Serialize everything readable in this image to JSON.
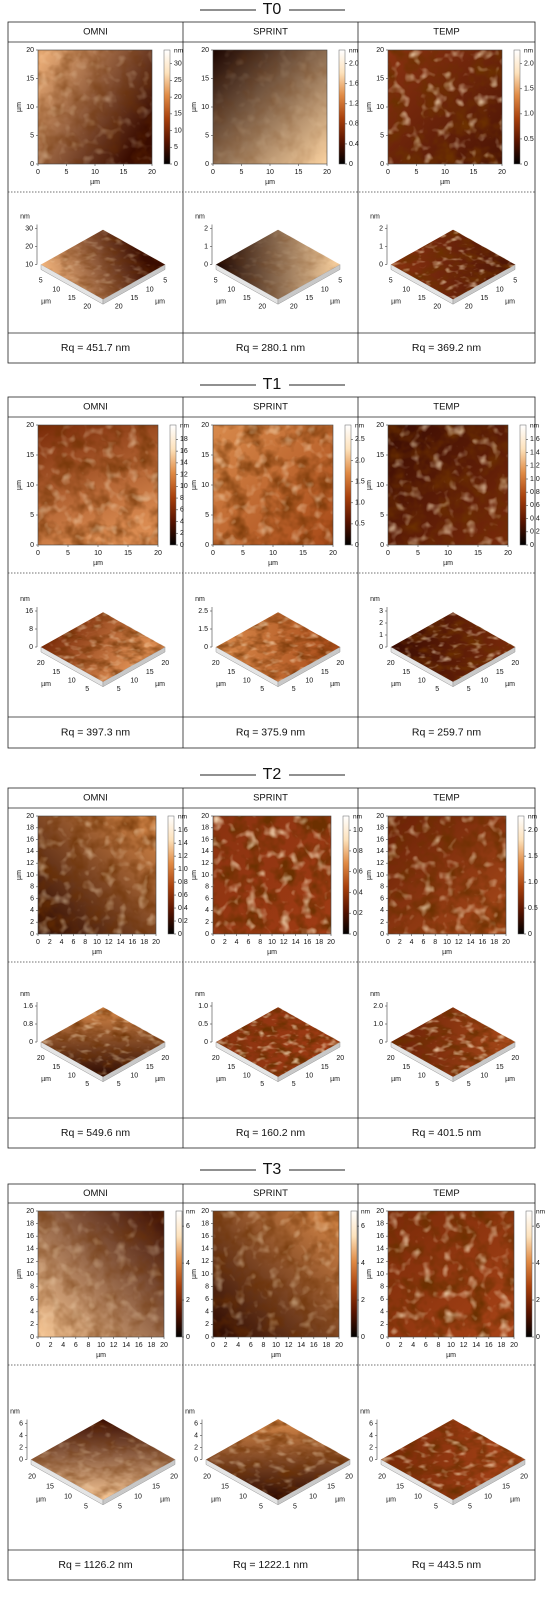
{
  "sections": [
    {
      "title": "T0",
      "columns": [
        {
          "header": "OMNI",
          "map": {
            "x_label": "µm",
            "y_label": "µm",
            "x_ticks": [
              "0",
              "5",
              "10",
              "15",
              "20"
            ],
            "y_ticks": [
              "0",
              "5",
              "10",
              "15",
              "20"
            ],
            "scale_unit": "nm",
            "scale_ticks": [
              "0",
              "5",
              "10",
              "15",
              "20",
              "25",
              "30"
            ]
          },
          "view": {
            "z_unit": "nm",
            "z_ticks": [
              "10",
              "20",
              "30"
            ],
            "left_label": "µm",
            "right_label": "µm",
            "left_ticks": [
              "5",
              "10",
              "15",
              "20"
            ],
            "right_ticks": [
              "20",
              "15",
              "10",
              "5"
            ]
          },
          "rq": "Rq = 451.7 nm"
        },
        {
          "header": "SPRINT",
          "map": {
            "x_label": "µm",
            "y_label": "µm",
            "x_ticks": [
              "0",
              "5",
              "10",
              "15",
              "20"
            ],
            "y_ticks": [
              "0",
              "5",
              "10",
              "15",
              "20"
            ],
            "scale_unit": "nm",
            "scale_ticks": [
              "0",
              "0.4",
              "0.8",
              "1.2",
              "1.6",
              "2.0"
            ]
          },
          "view": {
            "z_unit": "nm",
            "z_ticks": [
              "0",
              "1",
              "2"
            ],
            "left_label": "µm",
            "right_label": "µm",
            "left_ticks": [
              "5",
              "10",
              "15",
              "20"
            ],
            "right_ticks": [
              "20",
              "15",
              "10",
              "5"
            ]
          },
          "rq": "Rq = 280.1 nm"
        },
        {
          "header": "TEMP",
          "map": {
            "x_label": "µm",
            "y_label": "µm",
            "x_ticks": [
              "0",
              "5",
              "10",
              "15",
              "20"
            ],
            "y_ticks": [
              "0",
              "5",
              "10",
              "15",
              "20"
            ],
            "scale_unit": "nm",
            "scale_ticks": [
              "0",
              "0.5",
              "1.0",
              "1.5",
              "2.0"
            ]
          },
          "view": {
            "z_unit": "nm",
            "z_ticks": [
              "0",
              "1",
              "2"
            ],
            "left_label": "µm",
            "right_label": "µm",
            "left_ticks": [
              "5",
              "10",
              "15",
              "20"
            ],
            "right_ticks": [
              "20",
              "15",
              "10",
              "5"
            ]
          },
          "rq": "Rq = 369.2 nm"
        }
      ]
    },
    {
      "title": "T1",
      "columns": [
        {
          "header": "OMNI",
          "map": {
            "x_label": "µm",
            "y_label": "µm",
            "x_ticks": [
              "0",
              "5",
              "10",
              "15",
              "20"
            ],
            "y_ticks": [
              "0",
              "5",
              "10",
              "15",
              "20"
            ],
            "scale_unit": "nm",
            "scale_ticks": [
              "0",
              "2",
              "4",
              "6",
              "8",
              "10",
              "12",
              "14",
              "16",
              "18"
            ]
          },
          "view": {
            "z_unit": "nm",
            "z_ticks": [
              "0",
              "8",
              "16"
            ],
            "left_label": "µm",
            "right_label": "µm",
            "left_ticks": [
              "20",
              "15",
              "10",
              "5"
            ],
            "right_ticks": [
              "5",
              "10",
              "15",
              "20"
            ]
          },
          "rq": "Rq = 397.3 nm"
        },
        {
          "header": "SPRINT",
          "map": {
            "x_label": "µm",
            "y_label": "µm",
            "x_ticks": [
              "0",
              "5",
              "10",
              "15",
              "20"
            ],
            "y_ticks": [
              "0",
              "5",
              "10",
              "15",
              "20"
            ],
            "scale_unit": "nm",
            "scale_ticks": [
              "0",
              "0.5",
              "1.0",
              "1.5",
              "2.0",
              "2.5"
            ]
          },
          "view": {
            "z_unit": "nm",
            "z_ticks": [
              "0",
              "1.5",
              "2.5"
            ],
            "left_label": "µm",
            "right_label": "µm",
            "left_ticks": [
              "20",
              "15",
              "10",
              "5"
            ],
            "right_ticks": [
              "5",
              "10",
              "15",
              "20"
            ]
          },
          "rq": "Rq = 375.9 nm"
        },
        {
          "header": "TEMP",
          "map": {
            "x_label": "µm",
            "y_label": "µm",
            "x_ticks": [
              "0",
              "5",
              "10",
              "15",
              "20"
            ],
            "y_ticks": [
              "0",
              "5",
              "10",
              "15",
              "20"
            ],
            "scale_unit": "nm",
            "scale_ticks": [
              "0",
              "0.2",
              "0.4",
              "0.6",
              "0.8",
              "1.0",
              "1.2",
              "1.4",
              "1.6"
            ]
          },
          "view": {
            "z_unit": "nm",
            "z_ticks": [
              "0",
              "1",
              "2",
              "3"
            ],
            "left_label": "µm",
            "right_label": "µm",
            "left_ticks": [
              "20",
              "15",
              "10",
              "5"
            ],
            "right_ticks": [
              "5",
              "10",
              "15",
              "20"
            ]
          },
          "rq": "Rq = 259.7 nm"
        }
      ]
    },
    {
      "title": "T2",
      "columns": [
        {
          "header": "OMNI",
          "map": {
            "x_label": "µm",
            "y_label": "µm",
            "x_ticks": [
              "0",
              "2",
              "4",
              "6",
              "8",
              "10",
              "12",
              "14",
              "16",
              "18",
              "20"
            ],
            "y_ticks": [
              "0",
              "2",
              "4",
              "6",
              "8",
              "10",
              "12",
              "14",
              "16",
              "18",
              "20"
            ],
            "scale_unit": "nm",
            "scale_ticks": [
              "0",
              "0.2",
              "0.4",
              "0.6",
              "0.8",
              "1.0",
              "1.2",
              "1.4",
              "1.6"
            ]
          },
          "view": {
            "z_unit": "nm",
            "z_ticks": [
              "0",
              "0.8",
              "1.6"
            ],
            "left_label": "µm",
            "right_label": "µm",
            "left_ticks": [
              "20",
              "15",
              "10",
              "5"
            ],
            "right_ticks": [
              "5",
              "10",
              "15",
              "20"
            ]
          },
          "rq": "Rq = 549.6 nm"
        },
        {
          "header": "SPRINT",
          "map": {
            "x_label": "µm",
            "y_label": "µm",
            "x_ticks": [
              "0",
              "2",
              "4",
              "6",
              "8",
              "10",
              "12",
              "14",
              "16",
              "18",
              "20"
            ],
            "y_ticks": [
              "0",
              "2",
              "4",
              "6",
              "8",
              "10",
              "12",
              "14",
              "16",
              "18",
              "20"
            ],
            "scale_unit": "nm",
            "scale_ticks": [
              "0",
              "0.2",
              "0.4",
              "0.6",
              "0.8",
              "1.0"
            ]
          },
          "view": {
            "z_unit": "nm",
            "z_ticks": [
              "0",
              "0.5",
              "1.0"
            ],
            "left_label": "µm",
            "right_label": "µm",
            "left_ticks": [
              "20",
              "15",
              "10",
              "5"
            ],
            "right_ticks": [
              "5",
              "10",
              "15",
              "20"
            ]
          },
          "rq": "Rq = 160.2 nm"
        },
        {
          "header": "TEMP",
          "map": {
            "x_label": "µm",
            "y_label": "µm",
            "x_ticks": [
              "0",
              "2",
              "4",
              "6",
              "8",
              "10",
              "12",
              "14",
              "16",
              "18",
              "20"
            ],
            "y_ticks": [
              "0",
              "2",
              "4",
              "6",
              "8",
              "10",
              "12",
              "14",
              "16",
              "18",
              "20"
            ],
            "scale_unit": "nm",
            "scale_ticks": [
              "0",
              "0.5",
              "1.0",
              "1.5",
              "2.0"
            ]
          },
          "view": {
            "z_unit": "nm",
            "z_ticks": [
              "0",
              "1.0",
              "2.0"
            ],
            "left_label": "µm",
            "right_label": "µm",
            "left_ticks": [
              "20",
              "15",
              "10",
              "5"
            ],
            "right_ticks": [
              "5",
              "10",
              "15",
              "20"
            ]
          },
          "rq": "Rq = 401.5 nm"
        }
      ]
    },
    {
      "title": "T3",
      "columns": [
        {
          "header": "OMNI",
          "map": {
            "x_label": "µm",
            "y_label": "µm",
            "x_ticks": [
              "0",
              "2",
              "4",
              "6",
              "8",
              "10",
              "12",
              "14",
              "16",
              "18",
              "20"
            ],
            "y_ticks": [
              "0",
              "2",
              "4",
              "6",
              "8",
              "10",
              "12",
              "14",
              "16",
              "18",
              "20"
            ],
            "scale_unit": "nm",
            "scale_ticks": [
              "0",
              "2",
              "4",
              "6"
            ]
          },
          "view": {
            "z_unit": "nm",
            "z_ticks": [
              "0",
              "2",
              "4",
              "6"
            ],
            "left_label": "µm",
            "right_label": "µm",
            "left_ticks": [
              "20",
              "15",
              "10",
              "5"
            ],
            "right_ticks": [
              "5",
              "10",
              "15",
              "20"
            ]
          },
          "rq": "Rq = 1126.2 nm"
        },
        {
          "header": "SPRINT",
          "map": {
            "x_label": "µm",
            "y_label": "µm",
            "x_ticks": [
              "0",
              "2",
              "4",
              "6",
              "8",
              "10",
              "12",
              "14",
              "16",
              "18",
              "20"
            ],
            "y_ticks": [
              "0",
              "2",
              "4",
              "6",
              "8",
              "10",
              "12",
              "14",
              "16",
              "18",
              "20"
            ],
            "scale_unit": "nm",
            "scale_ticks": [
              "0",
              "2",
              "4",
              "6"
            ]
          },
          "view": {
            "z_unit": "nm",
            "z_ticks": [
              "0",
              "2",
              "4",
              "6"
            ],
            "left_label": "µm",
            "right_label": "µm",
            "left_ticks": [
              "20",
              "15",
              "10",
              "5"
            ],
            "right_ticks": [
              "5",
              "10",
              "15",
              "20"
            ]
          },
          "rq": "Rq = 1222.1 nm"
        },
        {
          "header": "TEMP",
          "map": {
            "x_label": "µm",
            "y_label": "µm",
            "x_ticks": [
              "0",
              "2",
              "4",
              "6",
              "8",
              "10",
              "12",
              "14",
              "16",
              "18",
              "20"
            ],
            "y_ticks": [
              "0",
              "2",
              "4",
              "6",
              "8",
              "10",
              "12",
              "14",
              "16",
              "18",
              "20"
            ],
            "scale_unit": "nm",
            "scale_ticks": [
              "0",
              "2",
              "4",
              "6"
            ]
          },
          "view": {
            "z_unit": "nm",
            "z_ticks": [
              "0",
              "2",
              "4",
              "6"
            ],
            "left_label": "µm",
            "right_label": "µm",
            "left_ticks": [
              "20",
              "15",
              "10",
              "5"
            ],
            "right_ticks": [
              "5",
              "10",
              "15",
              "20"
            ]
          },
          "rq": "Rq = 443.5 nm"
        }
      ]
    }
  ]
}
